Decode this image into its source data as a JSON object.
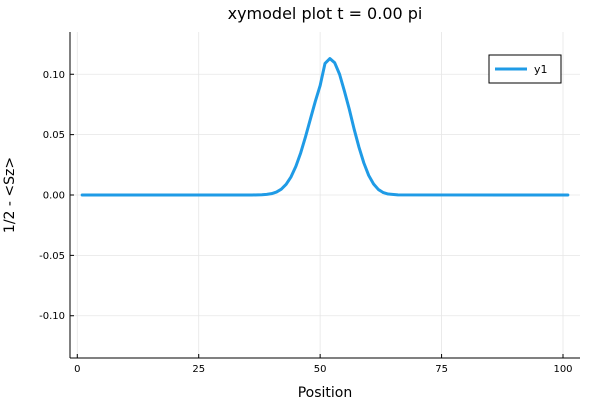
{
  "chart_data": {
    "type": "line",
    "title": "xymodel plot t = 0.00 pi",
    "xlabel": "Position",
    "ylabel": "1/2 - <Sz>",
    "xlim": [
      -1.5,
      103.5
    ],
    "ylim": [
      -0.135,
      0.135
    ],
    "xticks": [
      0,
      25,
      50,
      75,
      100
    ],
    "yticks": [
      -0.1,
      -0.05,
      0.0,
      0.05,
      0.1
    ],
    "xtick_labels": [
      "0",
      "25",
      "50",
      "75",
      "100"
    ],
    "ytick_labels": [
      "-0.10",
      "-0.05",
      "0.00",
      "0.05",
      "0.10"
    ],
    "grid": true,
    "legend_position": "top-right",
    "series": [
      {
        "name": "y1",
        "color": "#1f9be6",
        "x": [
          1,
          36,
          38,
          39,
          40,
          41,
          42,
          43,
          44,
          45,
          46,
          47,
          48,
          49,
          50,
          51,
          52,
          53,
          54,
          55,
          56,
          57,
          58,
          59,
          60,
          61,
          62,
          63,
          64,
          66,
          101
        ],
        "y": [
          0.0,
          0.0,
          0.0002,
          0.0005,
          0.0011,
          0.0024,
          0.0048,
          0.0088,
          0.015,
          0.0237,
          0.0349,
          0.0484,
          0.063,
          0.0775,
          0.0906,
          0.109,
          0.113,
          0.1095,
          0.1,
          0.086,
          0.071,
          0.0545,
          0.0395,
          0.0265,
          0.0162,
          0.0091,
          0.0045,
          0.002,
          0.0008,
          0.0001,
          0.0
        ]
      }
    ]
  }
}
